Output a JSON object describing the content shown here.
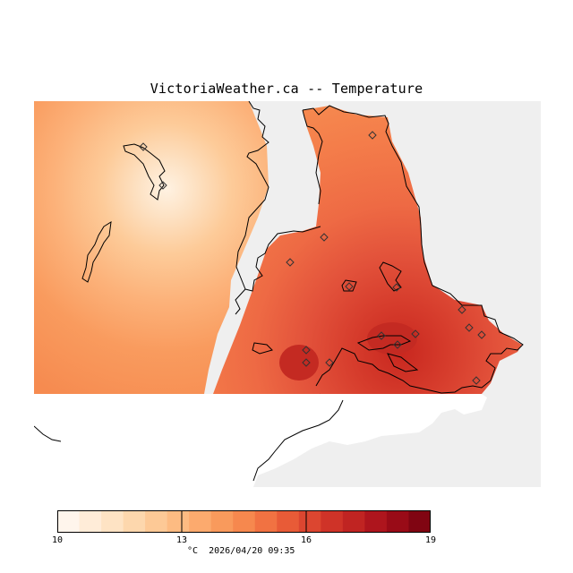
{
  "title": "VictoriaWeather.ca -- Temperature",
  "colors": {
    "sea": "#efefef",
    "land_outline": "#000000",
    "scale": [
      "#fff5ec",
      "#ffecd8",
      "#fee3c4",
      "#fdd7ad",
      "#fdc996",
      "#fdbb82",
      "#fcaa6e",
      "#f99a5c",
      "#f6884e",
      "#f17242",
      "#e85b37",
      "#dc4630",
      "#cf3328",
      "#c02422",
      "#ae151d",
      "#990b17",
      "#800512"
    ]
  },
  "colorbar": {
    "min": 10,
    "max": 19,
    "ticks": [
      "10",
      "13",
      "16",
      "19"
    ],
    "unit": "°C",
    "timestamp": "2026/04/20 09:35"
  },
  "stations_icon": "diamond-marker-icon"
}
